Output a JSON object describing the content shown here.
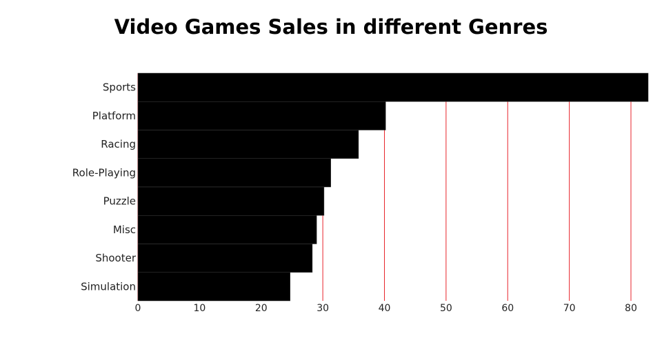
{
  "chart_data": {
    "type": "bar",
    "orientation": "horizontal",
    "title": "Video Games Sales in different Genres",
    "xlabel": "",
    "ylabel": "",
    "categories": [
      "Sports",
      "Platform",
      "Racing",
      "Role-Playing",
      "Puzzle",
      "Misc",
      "Shooter",
      "Simulation"
    ],
    "values": [
      82.8,
      40.2,
      35.8,
      31.3,
      30.2,
      29.0,
      28.3,
      24.7
    ],
    "xlim": [
      0,
      82.8
    ],
    "xticks": [
      0,
      10,
      20,
      30,
      40,
      50,
      60,
      70,
      80
    ],
    "grid": true,
    "bar_color": "#000000",
    "grid_color": "#e8232a"
  }
}
